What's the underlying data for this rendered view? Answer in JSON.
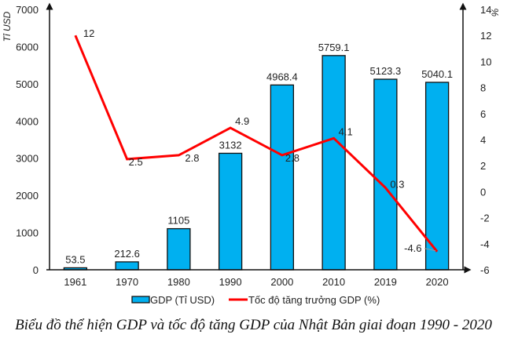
{
  "chart_data": {
    "type": "bar+line",
    "title": "Biểu đồ thể hiện GDP và tốc độ tăng GDP của Nhật Bản giai đoạn 1990 - 2020",
    "categories": [
      "1961",
      "1970",
      "1980",
      "1990",
      "2000",
      "2010",
      "2019",
      "2020"
    ],
    "series": [
      {
        "name": "GDP (Tỉ USD)",
        "type": "bar",
        "axis": "left",
        "color": "#00B0F0",
        "values": [
          53.5,
          212.6,
          1105,
          3132,
          4968.4,
          5759.1,
          5123.3,
          5040.1
        ],
        "labels": [
          "53.5",
          "212.6",
          "1105",
          "3132",
          "4968.4",
          "5759.1",
          "5123.3",
          "5040.1"
        ]
      },
      {
        "name": "Tốc độ tăng trưởng GDP (%)",
        "type": "line",
        "axis": "right",
        "color": "#FF0000",
        "values": [
          12,
          2.5,
          2.8,
          4.9,
          2.8,
          4.1,
          0.3,
          -4.6
        ],
        "labels": [
          "12",
          "2.5",
          "2.8",
          "4.9",
          "2.8",
          "4.1",
          "0.3",
          "-4.6"
        ]
      }
    ],
    "left_axis": {
      "label": "Tỉ USD",
      "range": [
        0,
        7000
      ],
      "ticks": [
        "0",
        "1000",
        "2000",
        "3000",
        "4000",
        "5000",
        "6000",
        "7000"
      ]
    },
    "right_axis": {
      "label": "%",
      "range": [
        -6,
        14
      ],
      "ticks": [
        "-6",
        "-4",
        "-2",
        "0",
        "2",
        "4",
        "6",
        "8",
        "10",
        "12",
        "14"
      ]
    },
    "grid": false,
    "legend": {
      "position": "bottom",
      "items": [
        "GDP (Tỉ USD)",
        "Tốc độ tăng trưởng GDP (%)"
      ]
    }
  },
  "caption": "Biểu đồ thể hiện GDP và tốc độ tăng GDP của Nhật Bản giai đoạn 1990 - 2020"
}
